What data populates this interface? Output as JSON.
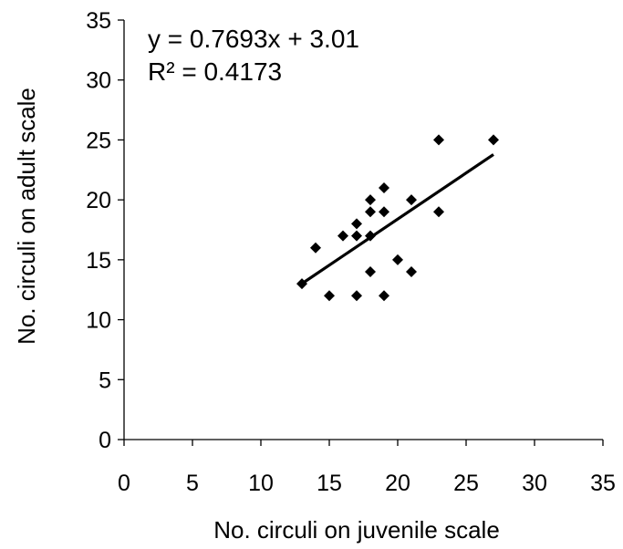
{
  "chart_data": {
    "type": "scatter",
    "title": "",
    "xlabel": "No. circuli on juvenile scale",
    "ylabel": "No. circuli on adult scale",
    "xlim": [
      0,
      35
    ],
    "ylim": [
      0,
      35
    ],
    "xticks": [
      "0",
      "5",
      "10",
      "15",
      "20",
      "25",
      "30",
      "35"
    ],
    "yticks": [
      "0",
      "5",
      "10",
      "15",
      "20",
      "25",
      "30",
      "35"
    ],
    "grid": false,
    "legend": "none",
    "marker": "diamond",
    "marker_color": "#000000",
    "series": [
      {
        "points": [
          {
            "x": 13,
            "y": 13
          },
          {
            "x": 14,
            "y": 16
          },
          {
            "x": 15,
            "y": 12
          },
          {
            "x": 16,
            "y": 17
          },
          {
            "x": 17,
            "y": 17
          },
          {
            "x": 17,
            "y": 18
          },
          {
            "x": 17,
            "y": 12
          },
          {
            "x": 18,
            "y": 20
          },
          {
            "x": 18,
            "y": 19
          },
          {
            "x": 18,
            "y": 17
          },
          {
            "x": 18,
            "y": 14
          },
          {
            "x": 19,
            "y": 21
          },
          {
            "x": 19,
            "y": 19
          },
          {
            "x": 19,
            "y": 12
          },
          {
            "x": 20,
            "y": 15
          },
          {
            "x": 21,
            "y": 20
          },
          {
            "x": 21,
            "y": 14
          },
          {
            "x": 23,
            "y": 25
          },
          {
            "x": 23,
            "y": 19
          },
          {
            "x": 27,
            "y": 25
          }
        ]
      }
    ],
    "trendline": {
      "type": "linear",
      "slope": 0.7693,
      "intercept": 3.01,
      "x_range": [
        13,
        27
      ],
      "color": "#000000"
    },
    "annotations": {
      "equation": "y = 0.7693x + 3.01",
      "r_squared": "R² = 0.4173"
    }
  }
}
